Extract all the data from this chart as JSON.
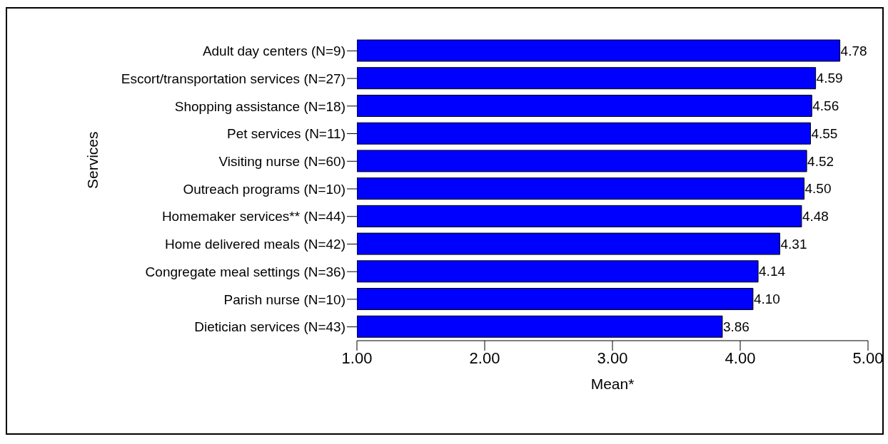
{
  "chart_data": {
    "type": "bar",
    "orientation": "horizontal",
    "xlabel": "Mean*",
    "ylabel": "Services",
    "categories": [
      "Adult day centers (N=9)",
      "Escort/transportation services (N=27)",
      "Shopping assistance (N=18)",
      "Pet services (N=11)",
      "Visiting nurse (N=60)",
      "Outreach programs (N=10)",
      "Homemaker services** (N=44)",
      "Home delivered meals (N=42)",
      "Congregate meal settings (N=36)",
      "Parish nurse (N=10)",
      "Dietician services (N=43)"
    ],
    "values": [
      4.78,
      4.59,
      4.56,
      4.55,
      4.52,
      4.5,
      4.48,
      4.31,
      4.14,
      4.1,
      3.86
    ],
    "value_labels": [
      "4.78",
      "4.59",
      "4.56",
      "4.55",
      "4.52",
      "4.50",
      "4.48",
      "4.31",
      "4.14",
      "4.10",
      "3.86"
    ],
    "color": "#0000ff",
    "xlim": [
      1,
      5
    ],
    "xticks": [
      {
        "value": 1,
        "label": "1.00"
      },
      {
        "value": 2,
        "label": "2.00"
      },
      {
        "value": 3,
        "label": "3.00"
      },
      {
        "value": 4,
        "label": "4.00"
      },
      {
        "value": 5,
        "label": "5.00"
      }
    ],
    "grid": false,
    "legend": false
  }
}
